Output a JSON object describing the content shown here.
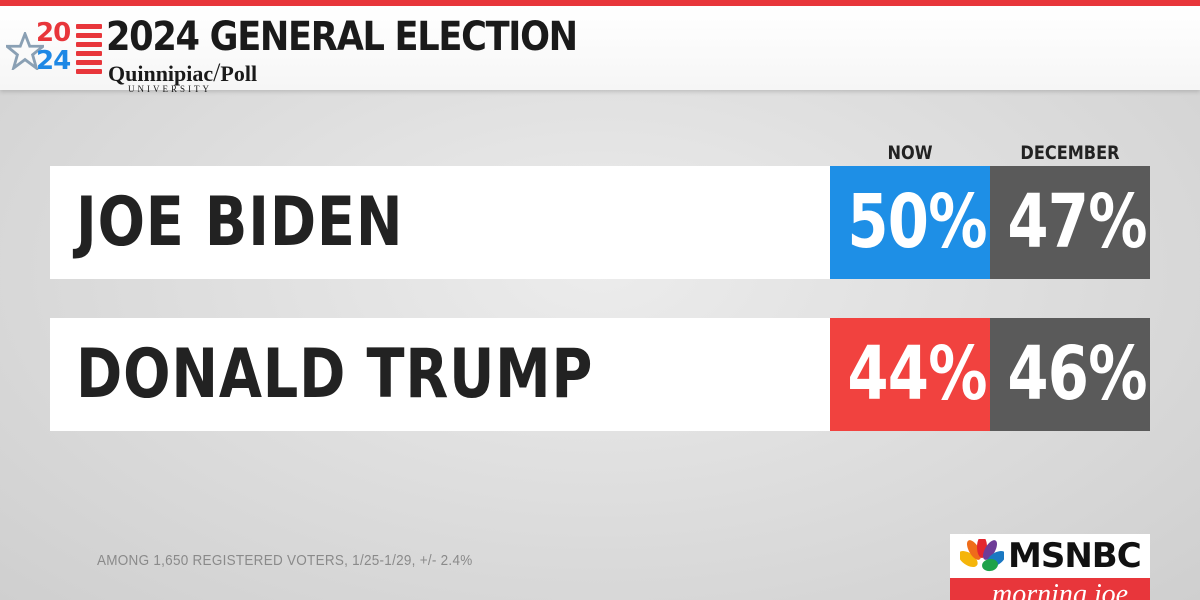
{
  "header": {
    "logo_year_top": "20",
    "logo_year_bottom": "24",
    "title": "2024 GENERAL ELECTION",
    "pollster_left": "Quinnipiac",
    "pollster_slash": "/",
    "pollster_right": "Poll",
    "pollster_sub": "UNIVERSITY"
  },
  "columns": {
    "now": "NOW",
    "december": "DECEMBER"
  },
  "candidates": [
    {
      "name": "JOE BIDEN",
      "now": "50%",
      "december": "47%",
      "now_color": "#1e8fe6"
    },
    {
      "name": "DONALD TRUMP",
      "now": "44%",
      "december": "46%",
      "now_color": "#f1423f"
    }
  ],
  "footnote": "AMONG 1,650 REGISTERED VOTERS, 1/25-1/29, +/- 2.4%",
  "network": {
    "logo_text": "MSNBC",
    "show": "morning joe",
    "icon": "peacock-icon"
  },
  "colors": {
    "accent_red": "#e8363b",
    "biden_blue": "#1e8fe6",
    "trump_red": "#f1423f",
    "december_gray": "#5a5a5a"
  }
}
